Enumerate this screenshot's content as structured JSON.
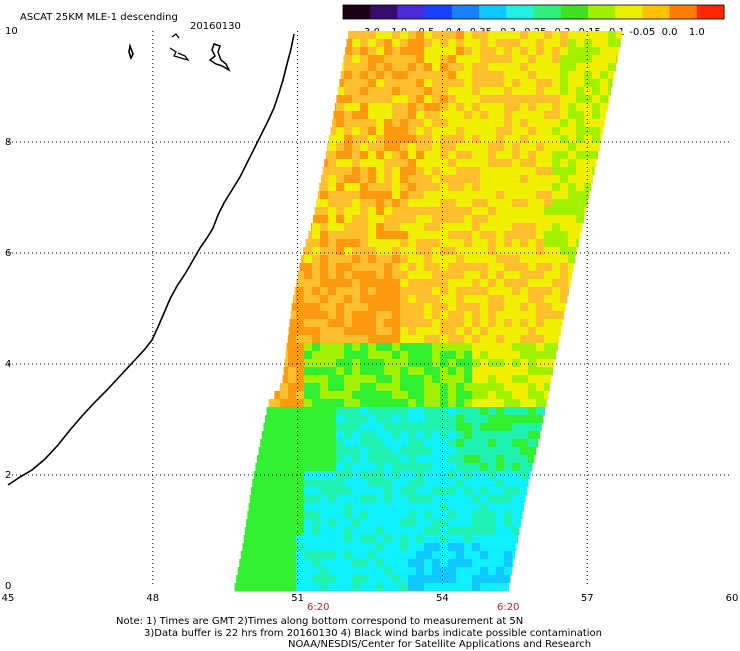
{
  "title": "ASCAT 25KM MLE-1 descending",
  "date": "20160130",
  "colorbar": {
    "labels": [
      "-3.0",
      "-1.0",
      "-0.5",
      "-0.4",
      "-0.35",
      "-0.3",
      "-0.25",
      "-0.2",
      "-0.15",
      "-0.1",
      "-0.05",
      "0.0",
      "1.0"
    ],
    "colors": [
      "#1a0010",
      "#3a0a6e",
      "#4a2ad8",
      "#1a40ff",
      "#1a80ff",
      "#10c8ff",
      "#20f0e0",
      "#30f080",
      "#40e020",
      "#a0ee00",
      "#e8f000",
      "#ffc000",
      "#ff7a00",
      "#ff2800"
    ]
  },
  "map": {
    "lat_labels": [
      "10",
      "8",
      "6",
      "4",
      "2",
      "0"
    ],
    "lon_labels": [
      "45",
      "48",
      "51",
      "54",
      "57",
      "60"
    ],
    "lat_range": [
      0,
      10
    ],
    "lon_range": [
      45,
      60
    ],
    "grid": true,
    "pass_times": [
      "6:20",
      "6:20"
    ]
  },
  "notes": {
    "line1": "Note: 1) Times are GMT 2)Times along bottom correspond to measurement at 5N",
    "line2": "3)Data buffer is 22 hrs from 20160130 4) Black wind barbs indicate possible contamination",
    "line3": "NOAA/NESDIS/Center for Satellite Applications and Research"
  },
  "palette": {
    "orange": "#ff9a10",
    "light_orange": "#ffc030",
    "yellow": "#f0f000",
    "green_yellow": "#a0f000",
    "green": "#30f030",
    "cyan_green": "#20f0b0",
    "cyan": "#10f0ff",
    "light_blue": "#10c8ff"
  }
}
